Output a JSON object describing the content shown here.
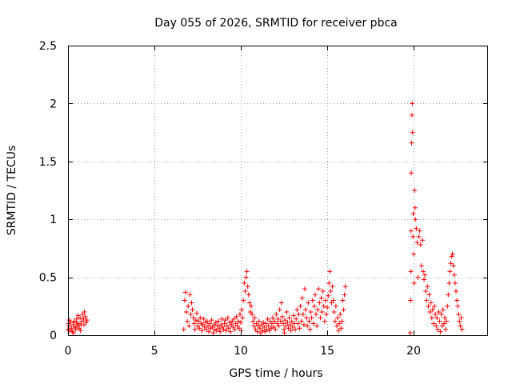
{
  "chart_data": {
    "type": "scatter",
    "title": "Day 055 of 2026, SRMTID for receiver pbca",
    "xlabel": "GPS time / hours",
    "ylabel": "SRMTID / TECUs",
    "xlim": [
      0,
      24.3
    ],
    "ylim": [
      0,
      2.5
    ],
    "xticks": [
      0,
      5,
      10,
      15,
      20
    ],
    "xtick_labels": [
      "0",
      "5",
      "10",
      "15",
      "20"
    ],
    "yticks": [
      0,
      0.5,
      1,
      1.5,
      2,
      2.5
    ],
    "ytick_labels": [
      "0",
      "0.5",
      "1",
      "1.5",
      "2",
      "2.5"
    ],
    "grid": true,
    "marker": "+",
    "series": [
      {
        "name": "pbca",
        "color": "#ff0000",
        "points": [
          [
            0.0,
            0.05
          ],
          [
            0.05,
            0.08
          ],
          [
            0.1,
            0.04
          ],
          [
            0.15,
            0.11
          ],
          [
            0.2,
            0.06
          ],
          [
            0.25,
            0.03
          ],
          [
            0.3,
            0.09
          ],
          [
            0.35,
            0.12
          ],
          [
            0.4,
            0.07
          ],
          [
            0.45,
            0.05
          ],
          [
            0.5,
            0.14
          ],
          [
            0.55,
            0.08
          ],
          [
            0.6,
            0.1
          ],
          [
            0.65,
            0.06
          ],
          [
            0.7,
            0.15
          ],
          [
            0.75,
            0.09
          ],
          [
            0.8,
            0.12
          ],
          [
            0.85,
            0.18
          ],
          [
            0.9,
            0.14
          ],
          [
            0.95,
            0.2
          ],
          [
            1.0,
            0.16
          ],
          [
            1.05,
            0.11
          ],
          [
            1.1,
            0.13
          ],
          [
            0.08,
            0.13
          ],
          [
            0.32,
            0.02
          ],
          [
            0.58,
            0.17
          ],
          [
            0.72,
            0.04
          ],
          [
            0.92,
            0.09
          ],
          [
            0.02,
            0.1
          ],
          [
            0.48,
            0.11
          ],
          [
            6.7,
            0.05
          ],
          [
            6.75,
            0.3
          ],
          [
            6.8,
            0.37
          ],
          [
            6.85,
            0.2
          ],
          [
            6.9,
            0.12
          ],
          [
            6.95,
            0.25
          ],
          [
            7.0,
            0.08
          ],
          [
            7.05,
            0.35
          ],
          [
            7.1,
            0.18
          ],
          [
            7.15,
            0.28
          ],
          [
            7.2,
            0.22
          ],
          [
            7.25,
            0.15
          ],
          [
            7.3,
            0.1
          ],
          [
            7.35,
            0.05
          ],
          [
            7.4,
            0.13
          ],
          [
            7.45,
            0.19
          ],
          [
            7.5,
            0.08
          ],
          [
            7.55,
            0.12
          ],
          [
            7.6,
            0.06
          ],
          [
            7.65,
            0.15
          ],
          [
            7.7,
            0.1
          ],
          [
            7.75,
            0.04
          ],
          [
            7.8,
            0.09
          ],
          [
            7.85,
            0.14
          ],
          [
            7.9,
            0.07
          ],
          [
            7.95,
            0.11
          ],
          [
            8.0,
            0.05
          ],
          [
            8.05,
            0.12
          ],
          [
            8.1,
            0.08
          ],
          [
            8.15,
            0.03
          ],
          [
            8.2,
            0.1
          ],
          [
            8.25,
            0.06
          ],
          [
            8.3,
            0.13
          ],
          [
            8.35,
            0.07
          ],
          [
            8.4,
            0.02
          ],
          [
            8.45,
            0.09
          ],
          [
            8.5,
            0.05
          ],
          [
            8.55,
            0.11
          ],
          [
            8.6,
            0.04
          ],
          [
            8.65,
            0.08
          ],
          [
            8.7,
            0.12
          ],
          [
            8.75,
            0.06
          ],
          [
            8.8,
            0.03
          ],
          [
            8.85,
            0.09
          ],
          [
            8.9,
            0.14
          ],
          [
            8.95,
            0.07
          ],
          [
            9.0,
            0.05
          ],
          [
            9.05,
            0.1
          ],
          [
            9.1,
            0.13
          ],
          [
            9.15,
            0.04
          ],
          [
            9.2,
            0.08
          ],
          [
            9.25,
            0.15
          ],
          [
            9.3,
            0.06
          ],
          [
            9.35,
            0.11
          ],
          [
            9.4,
            0.03
          ],
          [
            9.45,
            0.09
          ],
          [
            9.5,
            0.12
          ],
          [
            9.55,
            0.07
          ],
          [
            9.6,
            0.14
          ],
          [
            9.65,
            0.05
          ],
          [
            9.7,
            0.1
          ],
          [
            9.75,
            0.16
          ],
          [
            9.8,
            0.08
          ],
          [
            9.85,
            0.12
          ],
          [
            9.9,
            0.06
          ],
          [
            9.95,
            0.18
          ],
          [
            10.0,
            0.11
          ],
          [
            10.05,
            0.22
          ],
          [
            10.1,
            0.15
          ],
          [
            10.15,
            0.3
          ],
          [
            10.2,
            0.45
          ],
          [
            10.25,
            0.38
          ],
          [
            10.3,
            0.5
          ],
          [
            10.35,
            0.55
          ],
          [
            10.4,
            0.42
          ],
          [
            10.45,
            0.35
          ],
          [
            10.5,
            0.28
          ],
          [
            10.55,
            0.2
          ],
          [
            10.6,
            0.25
          ],
          [
            10.65,
            0.18
          ],
          [
            10.7,
            0.12
          ],
          [
            10.75,
            0.08
          ],
          [
            10.8,
            0.15
          ],
          [
            10.85,
            0.05
          ],
          [
            10.9,
            0.1
          ],
          [
            10.95,
            0.03
          ],
          [
            11.0,
            0.08
          ],
          [
            11.05,
            0.12
          ],
          [
            11.1,
            0.06
          ],
          [
            11.15,
            0.02
          ],
          [
            11.2,
            0.09
          ],
          [
            11.25,
            0.04
          ],
          [
            11.3,
            0.11
          ],
          [
            11.35,
            0.07
          ],
          [
            11.4,
            0.03
          ],
          [
            11.45,
            0.1
          ],
          [
            11.5,
            0.05
          ],
          [
            11.55,
            0.14
          ],
          [
            11.6,
            0.08
          ],
          [
            11.65,
            0.04
          ],
          [
            11.7,
            0.12
          ],
          [
            11.75,
            0.06
          ],
          [
            11.8,
            0.1
          ],
          [
            11.85,
            0.15
          ],
          [
            11.9,
            0.07
          ],
          [
            11.95,
            0.12
          ],
          [
            12.0,
            0.05
          ],
          [
            12.05,
            0.18
          ],
          [
            12.1,
            0.1
          ],
          [
            12.15,
            0.14
          ],
          [
            12.2,
            0.08
          ],
          [
            12.25,
            0.22
          ],
          [
            12.3,
            0.12
          ],
          [
            12.35,
            0.28
          ],
          [
            12.4,
            0.16
          ],
          [
            12.45,
            0.1
          ],
          [
            12.5,
            0.05
          ],
          [
            12.55,
            0.13
          ],
          [
            12.6,
            0.08
          ],
          [
            12.65,
            0.2
          ],
          [
            12.7,
            0.11
          ],
          [
            12.75,
            0.06
          ],
          [
            12.8,
            0.15
          ],
          [
            12.85,
            0.09
          ],
          [
            12.9,
            0.04
          ],
          [
            12.95,
            0.12
          ],
          [
            13.0,
            0.07
          ],
          [
            13.05,
            0.17
          ],
          [
            13.1,
            0.1
          ],
          [
            13.15,
            0.05
          ],
          [
            13.2,
            0.14
          ],
          [
            13.25,
            0.22
          ],
          [
            13.3,
            0.1
          ],
          [
            13.35,
            0.18
          ],
          [
            13.4,
            0.06
          ],
          [
            13.45,
            0.25
          ],
          [
            13.5,
            0.12
          ],
          [
            13.55,
            0.32
          ],
          [
            13.6,
            0.18
          ],
          [
            13.65,
            0.09
          ],
          [
            13.7,
            0.4
          ],
          [
            13.75,
            0.22
          ],
          [
            13.8,
            0.15
          ],
          [
            13.85,
            0.08
          ],
          [
            13.9,
            0.28
          ],
          [
            13.95,
            0.12
          ],
          [
            14.0,
            0.05
          ],
          [
            14.05,
            0.2
          ],
          [
            14.1,
            0.15
          ],
          [
            14.15,
            0.3
          ],
          [
            14.2,
            0.1
          ],
          [
            14.25,
            0.25
          ],
          [
            14.3,
            0.35
          ],
          [
            14.35,
            0.18
          ],
          [
            14.4,
            0.08
          ],
          [
            14.45,
            0.22
          ],
          [
            14.5,
            0.4
          ],
          [
            14.55,
            0.28
          ],
          [
            14.6,
            0.15
          ],
          [
            14.65,
            0.32
          ],
          [
            14.7,
            0.2
          ],
          [
            14.75,
            0.38
          ],
          [
            14.8,
            0.25
          ],
          [
            14.85,
            0.12
          ],
          [
            14.9,
            0.3
          ],
          [
            14.95,
            0.18
          ],
          [
            15.0,
            0.24
          ],
          [
            15.05,
            0.34
          ],
          [
            15.1,
            0.45
          ],
          [
            15.15,
            0.55
          ],
          [
            15.2,
            0.38
          ],
          [
            15.25,
            0.28
          ],
          [
            15.3,
            0.42
          ],
          [
            15.35,
            0.3
          ],
          [
            15.4,
            0.2
          ],
          [
            15.45,
            0.12
          ],
          [
            15.5,
            0.25
          ],
          [
            15.55,
            0.08
          ],
          [
            15.6,
            0.15
          ],
          [
            15.65,
            0.04
          ],
          [
            15.7,
            0.1
          ],
          [
            15.75,
            0.18
          ],
          [
            15.8,
            0.06
          ],
          [
            15.85,
            0.12
          ],
          [
            15.9,
            0.3
          ],
          [
            15.95,
            0.22
          ],
          [
            16.0,
            0.35
          ],
          [
            16.05,
            0.42
          ],
          [
            10.02,
            0.04
          ],
          [
            12.52,
            0.02
          ],
          [
            19.8,
            0.02
          ],
          [
            19.82,
            0.3
          ],
          [
            19.84,
            0.55
          ],
          [
            19.86,
            1.4
          ],
          [
            19.88,
            1.66
          ],
          [
            19.9,
            1.9
          ],
          [
            19.92,
            2.0
          ],
          [
            19.94,
            1.75
          ],
          [
            19.96,
            0.85
          ],
          [
            19.98,
            1.05
          ],
          [
            20.0,
            0.7
          ],
          [
            20.05,
            1.25
          ],
          [
            20.08,
            1.1
          ],
          [
            20.1,
            1.0
          ],
          [
            20.15,
            0.92
          ],
          [
            20.2,
            0.8
          ],
          [
            20.25,
            0.5
          ],
          [
            20.3,
            0.85
          ],
          [
            20.35,
            0.9
          ],
          [
            20.4,
            0.78
          ],
          [
            20.45,
            0.6
          ],
          [
            20.5,
            0.82
          ],
          [
            20.55,
            0.55
          ],
          [
            20.6,
            0.48
          ],
          [
            20.65,
            0.52
          ],
          [
            20.7,
            0.38
          ],
          [
            20.75,
            0.3
          ],
          [
            20.8,
            0.42
          ],
          [
            20.85,
            0.25
          ],
          [
            20.9,
            0.35
          ],
          [
            20.95,
            0.2
          ],
          [
            21.0,
            0.28
          ],
          [
            21.05,
            0.15
          ],
          [
            21.1,
            0.22
          ],
          [
            21.15,
            0.1
          ],
          [
            21.2,
            0.25
          ],
          [
            21.25,
            0.18
          ],
          [
            21.3,
            0.08
          ],
          [
            21.35,
            0.15
          ],
          [
            21.4,
            0.05
          ],
          [
            21.45,
            0.2
          ],
          [
            21.5,
            0.12
          ],
          [
            21.55,
            0.03
          ],
          [
            21.6,
            0.18
          ],
          [
            21.65,
            0.08
          ],
          [
            21.7,
            0.22
          ],
          [
            21.75,
            0.1
          ],
          [
            21.8,
            0.15
          ],
          [
            21.85,
            0.05
          ],
          [
            21.9,
            0.12
          ],
          [
            21.95,
            0.25
          ],
          [
            22.0,
            0.35
          ],
          [
            22.05,
            0.45
          ],
          [
            22.1,
            0.55
          ],
          [
            22.15,
            0.62
          ],
          [
            22.2,
            0.68
          ],
          [
            22.25,
            0.7
          ],
          [
            22.3,
            0.6
          ],
          [
            22.35,
            0.52
          ],
          [
            22.4,
            0.45
          ],
          [
            22.45,
            0.38
          ],
          [
            22.5,
            0.3
          ],
          [
            22.55,
            0.25
          ],
          [
            22.6,
            0.18
          ],
          [
            22.65,
            0.12
          ],
          [
            22.7,
            0.08
          ],
          [
            22.75,
            0.15
          ],
          [
            22.8,
            0.05
          ],
          [
            19.85,
            0.9
          ],
          [
            20.02,
            0.45
          ]
        ]
      }
    ]
  }
}
